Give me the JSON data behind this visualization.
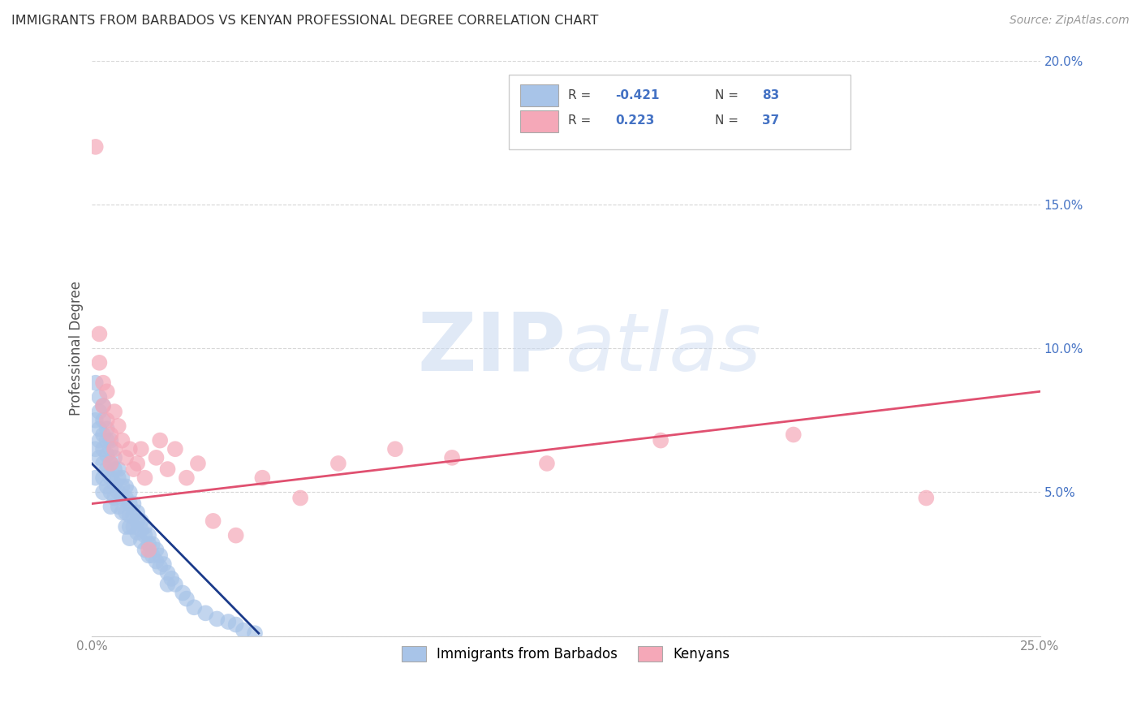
{
  "title": "IMMIGRANTS FROM BARBADOS VS KENYAN PROFESSIONAL DEGREE CORRELATION CHART",
  "source": "Source: ZipAtlas.com",
  "ylabel": "Professional Degree",
  "xlim": [
    0.0,
    0.25
  ],
  "ylim": [
    0.0,
    0.2
  ],
  "xticks": [
    0.0,
    0.05,
    0.1,
    0.15,
    0.2,
    0.25
  ],
  "yticks": [
    0.0,
    0.05,
    0.1,
    0.15,
    0.2
  ],
  "xticklabels": [
    "0.0%",
    "",
    "",
    "",
    "",
    "25.0%"
  ],
  "right_yticklabels": [
    "",
    "5.0%",
    "10.0%",
    "15.0%",
    "20.0%"
  ],
  "blue_R": -0.421,
  "blue_N": 83,
  "pink_R": 0.223,
  "pink_N": 37,
  "blue_color": "#a8c4e8",
  "pink_color": "#f5a8b8",
  "blue_line_color": "#1a3a8a",
  "pink_line_color": "#e05070",
  "legend_label_blue": "Immigrants from Barbados",
  "legend_label_pink": "Kenyans",
  "watermark_zip": "ZIP",
  "watermark_atlas": "atlas",
  "blue_scatter_x": [
    0.001,
    0.001,
    0.001,
    0.001,
    0.002,
    0.002,
    0.002,
    0.002,
    0.002,
    0.003,
    0.003,
    0.003,
    0.003,
    0.003,
    0.003,
    0.003,
    0.004,
    0.004,
    0.004,
    0.004,
    0.004,
    0.005,
    0.005,
    0.005,
    0.005,
    0.005,
    0.005,
    0.006,
    0.006,
    0.006,
    0.006,
    0.007,
    0.007,
    0.007,
    0.007,
    0.008,
    0.008,
    0.008,
    0.008,
    0.009,
    0.009,
    0.009,
    0.009,
    0.01,
    0.01,
    0.01,
    0.01,
    0.01,
    0.011,
    0.011,
    0.011,
    0.012,
    0.012,
    0.012,
    0.013,
    0.013,
    0.013,
    0.014,
    0.014,
    0.014,
    0.015,
    0.015,
    0.015,
    0.016,
    0.016,
    0.017,
    0.017,
    0.018,
    0.018,
    0.019,
    0.02,
    0.02,
    0.021,
    0.022,
    0.024,
    0.025,
    0.027,
    0.03,
    0.033,
    0.036,
    0.038,
    0.04,
    0.043
  ],
  "blue_scatter_y": [
    0.088,
    0.075,
    0.065,
    0.055,
    0.083,
    0.078,
    0.072,
    0.068,
    0.062,
    0.08,
    0.075,
    0.07,
    0.065,
    0.06,
    0.055,
    0.05,
    0.072,
    0.068,
    0.063,
    0.058,
    0.052,
    0.068,
    0.065,
    0.06,
    0.055,
    0.05,
    0.045,
    0.062,
    0.058,
    0.053,
    0.048,
    0.058,
    0.055,
    0.05,
    0.045,
    0.055,
    0.052,
    0.048,
    0.043,
    0.052,
    0.048,
    0.043,
    0.038,
    0.05,
    0.046,
    0.042,
    0.038,
    0.034,
    0.046,
    0.042,
    0.038,
    0.043,
    0.04,
    0.036,
    0.04,
    0.037,
    0.033,
    0.038,
    0.035,
    0.03,
    0.035,
    0.032,
    0.028,
    0.032,
    0.028,
    0.03,
    0.026,
    0.028,
    0.024,
    0.025,
    0.022,
    0.018,
    0.02,
    0.018,
    0.015,
    0.013,
    0.01,
    0.008,
    0.006,
    0.005,
    0.004,
    0.002,
    0.001
  ],
  "pink_scatter_x": [
    0.001,
    0.002,
    0.002,
    0.003,
    0.003,
    0.004,
    0.004,
    0.005,
    0.005,
    0.006,
    0.006,
    0.007,
    0.008,
    0.009,
    0.01,
    0.011,
    0.012,
    0.013,
    0.014,
    0.015,
    0.017,
    0.018,
    0.02,
    0.022,
    0.025,
    0.028,
    0.032,
    0.038,
    0.045,
    0.055,
    0.065,
    0.08,
    0.095,
    0.12,
    0.15,
    0.185,
    0.22
  ],
  "pink_scatter_y": [
    0.17,
    0.105,
    0.095,
    0.088,
    0.08,
    0.085,
    0.075,
    0.07,
    0.06,
    0.078,
    0.065,
    0.073,
    0.068,
    0.062,
    0.065,
    0.058,
    0.06,
    0.065,
    0.055,
    0.03,
    0.062,
    0.068,
    0.058,
    0.065,
    0.055,
    0.06,
    0.04,
    0.035,
    0.055,
    0.048,
    0.06,
    0.065,
    0.062,
    0.06,
    0.068,
    0.07,
    0.048
  ],
  "pink_line_x0": 0.0,
  "pink_line_y0": 0.046,
  "pink_line_x1": 0.25,
  "pink_line_y1": 0.085,
  "blue_line_x0": 0.0,
  "blue_line_y0": 0.06,
  "blue_line_x1": 0.044,
  "blue_line_y1": 0.001
}
